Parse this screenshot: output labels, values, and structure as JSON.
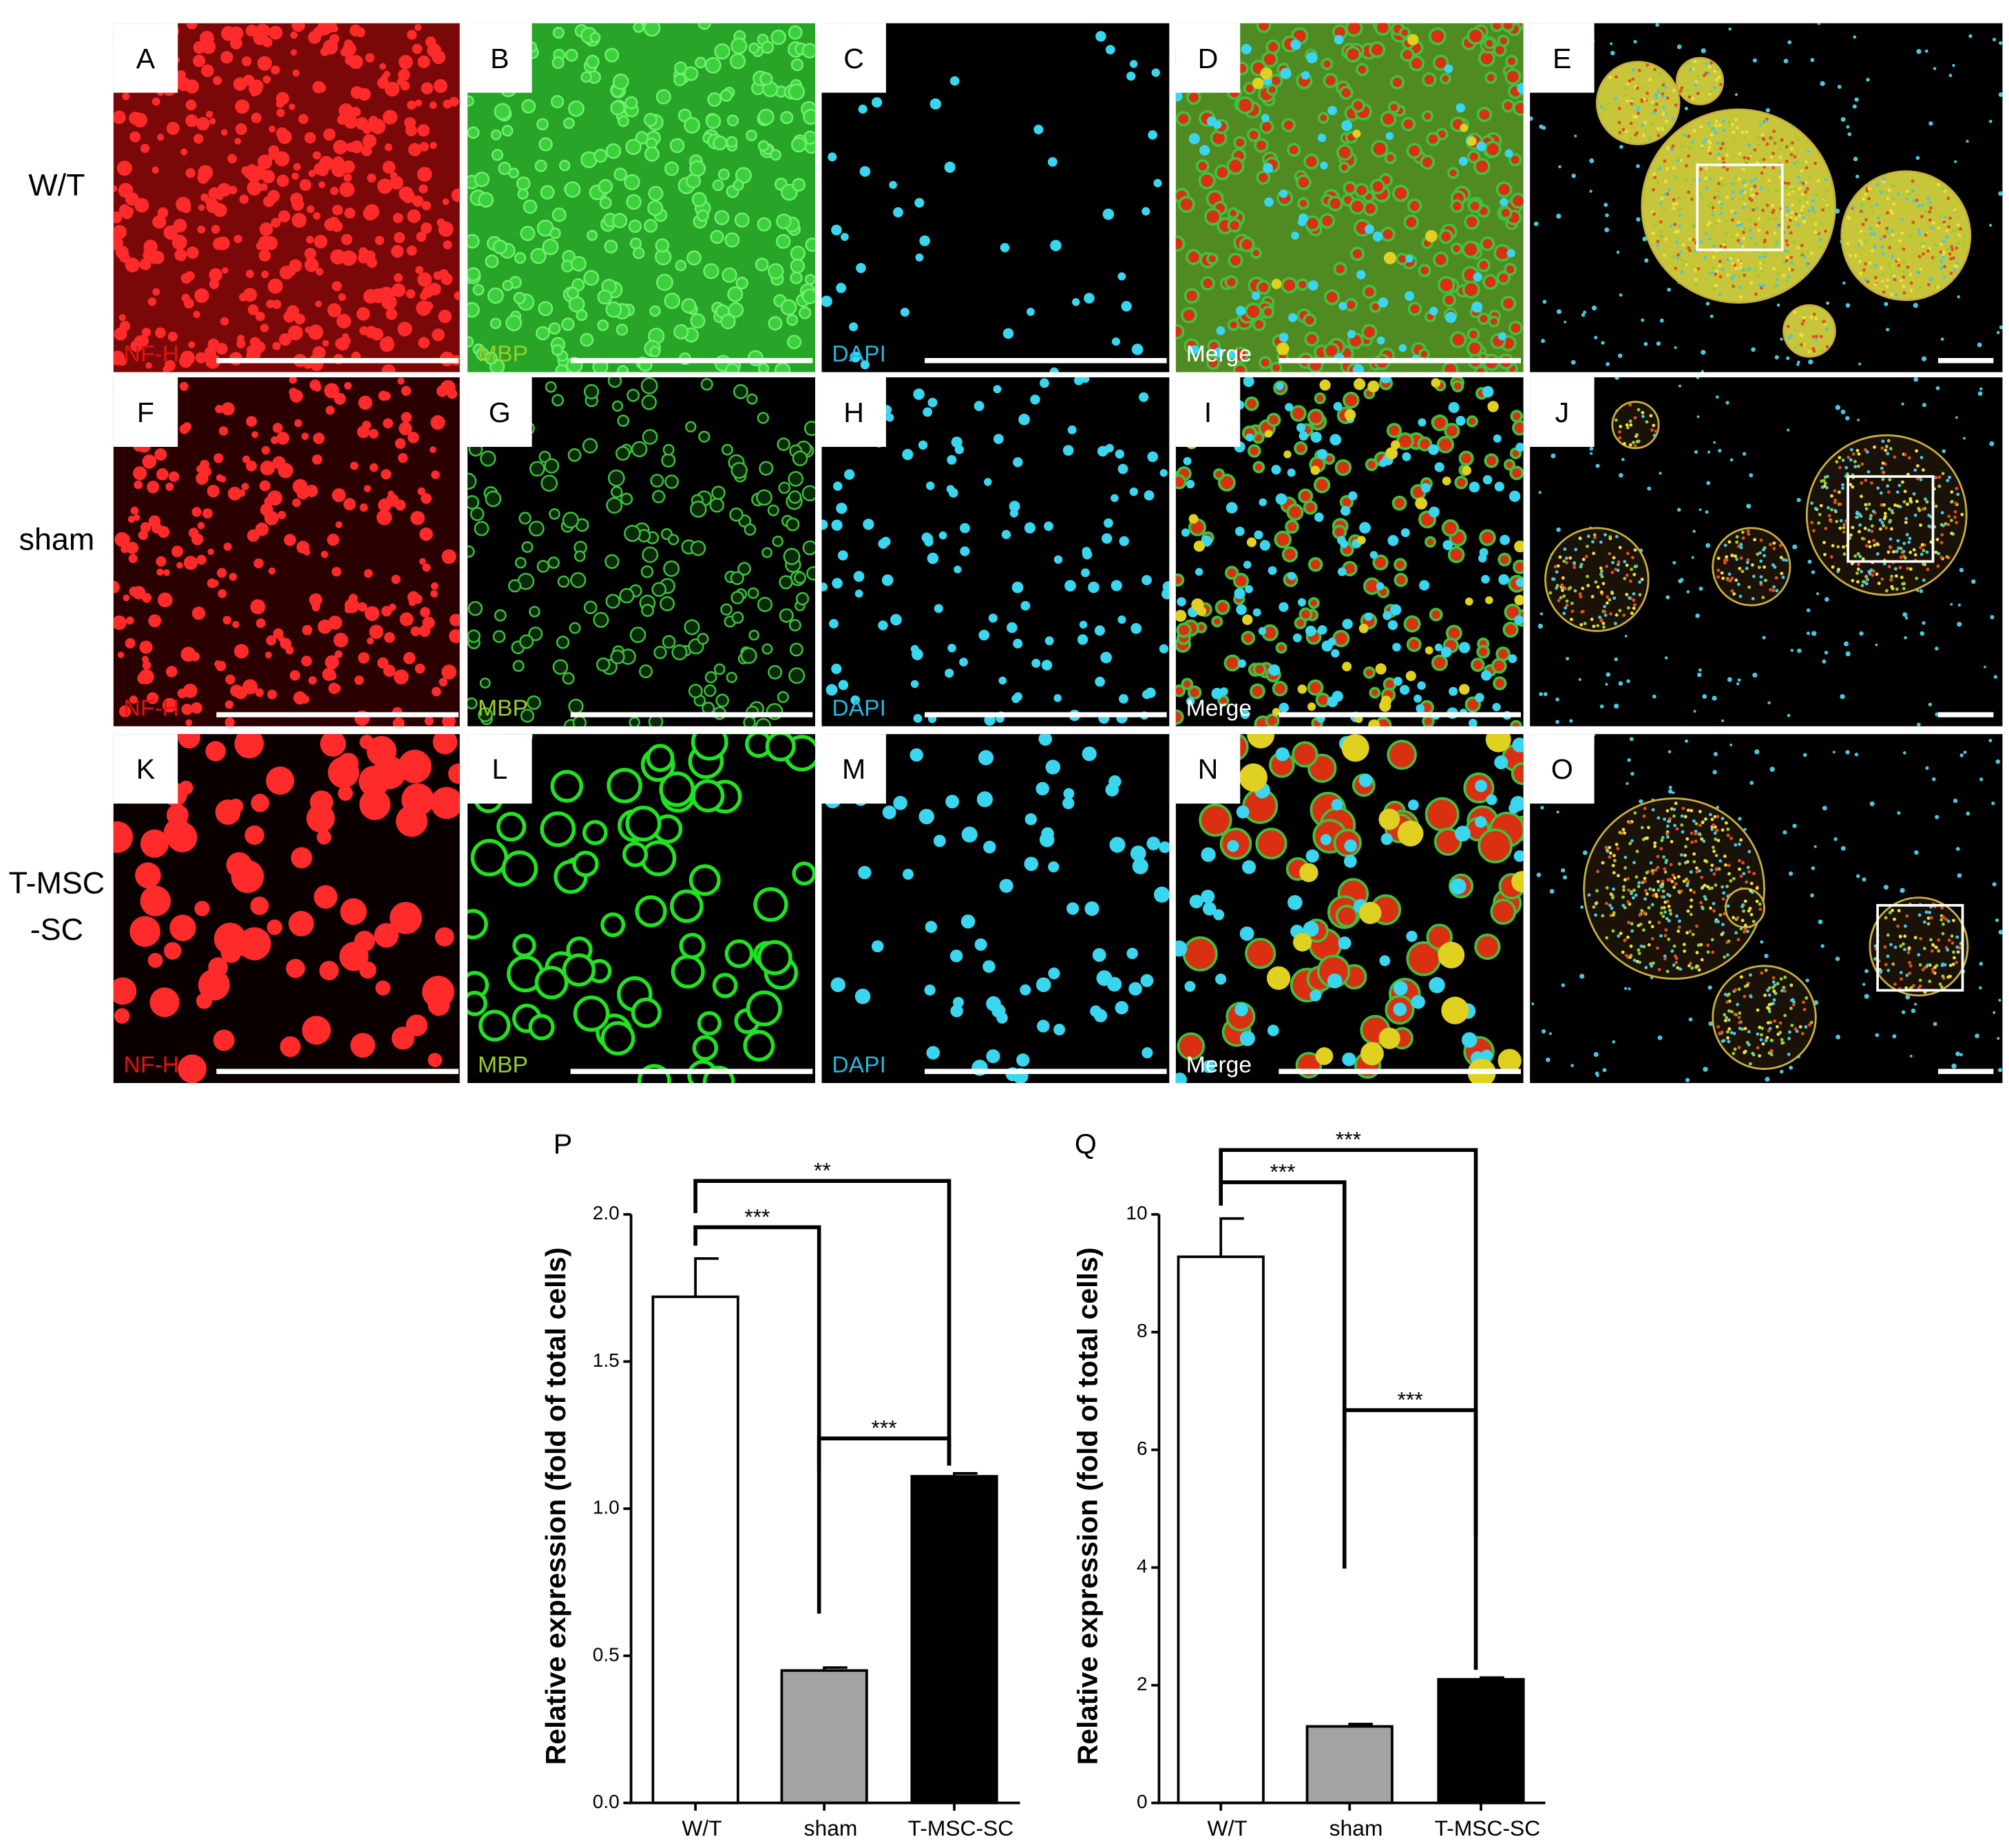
{
  "panels": {
    "row_labels": [
      "W/T",
      "sham",
      [
        "T-MSC",
        "-SC"
      ]
    ],
    "letters": [
      "A",
      "B",
      "C",
      "D",
      "E",
      "F",
      "G",
      "H",
      "I",
      "J",
      "K",
      "L",
      "M",
      "N",
      "O"
    ],
    "channel_labels": [
      "NF-H",
      "MBP",
      "DAPI",
      "Merge"
    ]
  },
  "chart_data": [
    {
      "type": "bar",
      "title": "P",
      "y_label": "Relative expression (fold of total cells)",
      "categories": [
        "W/T",
        "sham",
        "T-MSC-SC"
      ],
      "values": [
        1.72,
        0.45,
        1.11
      ],
      "errors": [
        0.13,
        0.01,
        0.01
      ],
      "colors": [
        "#ffffff",
        "#a3a3a6",
        "#000000"
      ],
      "ylim": [
        0,
        2
      ],
      "yticks": [
        {
          "value": 0,
          "label": "0.0"
        },
        0.5,
        {
          "value": 1,
          "label": "1.0"
        },
        1.5,
        {
          "value": 2,
          "label": "2.0"
        }
      ],
      "annotations": [
        "**",
        "***",
        "***"
      ]
    },
    {
      "type": "bar",
      "title": "Q",
      "y_label": "Relative expression (fold of total cells)",
      "categories": [
        "W/T",
        "sham",
        "T-MSC-SC"
      ],
      "values": [
        9.28,
        1.3,
        2.1
      ],
      "errors": [
        0.65,
        0.04,
        0.03
      ],
      "colors": [
        "#ffffff",
        "#a3a3a6",
        "#000000"
      ],
      "ylim": [
        0,
        10
      ],
      "yticks": [
        0,
        2,
        4,
        6,
        8,
        10
      ],
      "annotations": [
        "***",
        "***",
        "***"
      ]
    }
  ]
}
